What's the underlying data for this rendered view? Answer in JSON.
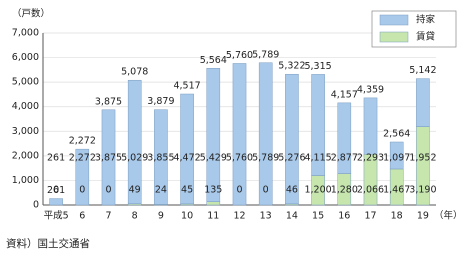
{
  "chart_data": {
    "type": "stacked-bar",
    "y_label": "（戸数）",
    "x_label": "（年）",
    "source": "資料）国土交通省",
    "categories": [
      "平成5",
      "6",
      "7",
      "8",
      "9",
      "10",
      "11",
      "12",
      "13",
      "14",
      "15",
      "16",
      "17",
      "18",
      "19"
    ],
    "series": [
      {
        "name": "賃貸",
        "color": "#c6e6ae",
        "values": [
          0,
          0,
          0,
          49,
          24,
          45,
          135,
          0,
          0,
          46,
          1200,
          1280,
          2066,
          1467,
          3190
        ],
        "value_labels": [
          "0",
          "0",
          "0",
          "49",
          "24",
          "45",
          "135",
          "0",
          "0",
          "46",
          "1,200",
          "1,280",
          "2,066",
          "1,467",
          "3,190"
        ]
      },
      {
        "name": "持家",
        "color": "#a9c9ea",
        "values": [
          261,
          2272,
          3875,
          5029,
          3855,
          4472,
          5429,
          5760,
          5789,
          5276,
          4115,
          2877,
          2293,
          1097,
          1952
        ],
        "value_labels": [
          "261",
          "2,272",
          "3,875",
          "5,029",
          "3,855",
          "4,472",
          "5,429",
          "5,760",
          "5,789",
          "5,276",
          "4,115",
          "2,877",
          "2,293",
          "1,097",
          "1,952"
        ]
      }
    ],
    "totals": [
      261,
      2272,
      3875,
      5078,
      3879,
      4517,
      5564,
      5760,
      5789,
      5322,
      5315,
      4157,
      4359,
      2564,
      5142
    ],
    "total_labels": [
      "261",
      "2,272",
      "3,875",
      "5,078",
      "3,879",
      "4,517",
      "5,564",
      "5,760",
      "5,789",
      "5,322",
      "5,315",
      "4,157",
      "4,359",
      "2,564",
      "5,142"
    ],
    "ylim": [
      0,
      7000
    ],
    "yticks": [
      0,
      {
        "value": 1000,
        "label": "1,000"
      },
      {
        "value": 2000,
        "label": "2,000"
      },
      {
        "value": 3000,
        "label": "3,000"
      },
      {
        "value": 4000,
        "label": "4,000"
      },
      {
        "value": 5000,
        "label": "5,000"
      },
      {
        "value": 6000,
        "label": "6,000"
      },
      {
        "value": 7000,
        "label": "7,000"
      }
    ],
    "grid": true
  }
}
